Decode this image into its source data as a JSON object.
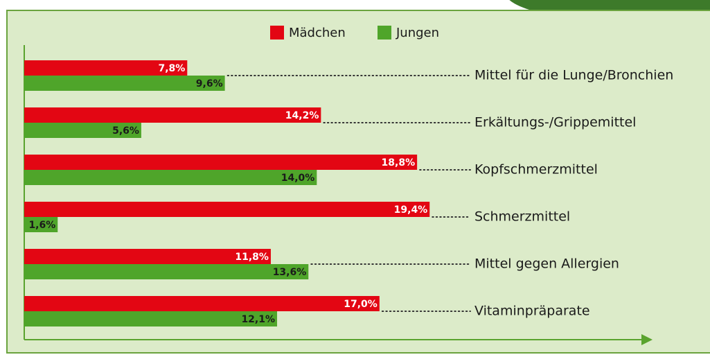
{
  "chart_data": {
    "type": "bar",
    "orientation": "horizontal",
    "categories": [
      "Mittel für die Lunge/Bronchien",
      "Erkältungs-/Grippemittel",
      "Kopfschmerzmittel",
      "Schmerzmittel",
      "Mittel gegen Allergien",
      "Vitaminpräparate"
    ],
    "series": [
      {
        "name": "Mädchen",
        "color": "#e30613",
        "values": [
          7.8,
          14.2,
          18.8,
          19.4,
          11.8,
          17.0
        ],
        "value_labels": [
          "7,8%",
          "14,2%",
          "18,8%",
          "19,4%",
          "11,8%",
          "17,0%"
        ]
      },
      {
        "name": "Jungen",
        "color": "#4fa52a",
        "values": [
          9.6,
          5.6,
          14.0,
          1.6,
          13.6,
          12.1
        ],
        "value_labels": [
          "9,6%",
          "5,6%",
          "14,0%",
          "1,6%",
          "13,6%",
          "12,1%"
        ]
      }
    ],
    "xlim": [
      0,
      30
    ],
    "legend": "top"
  }
}
